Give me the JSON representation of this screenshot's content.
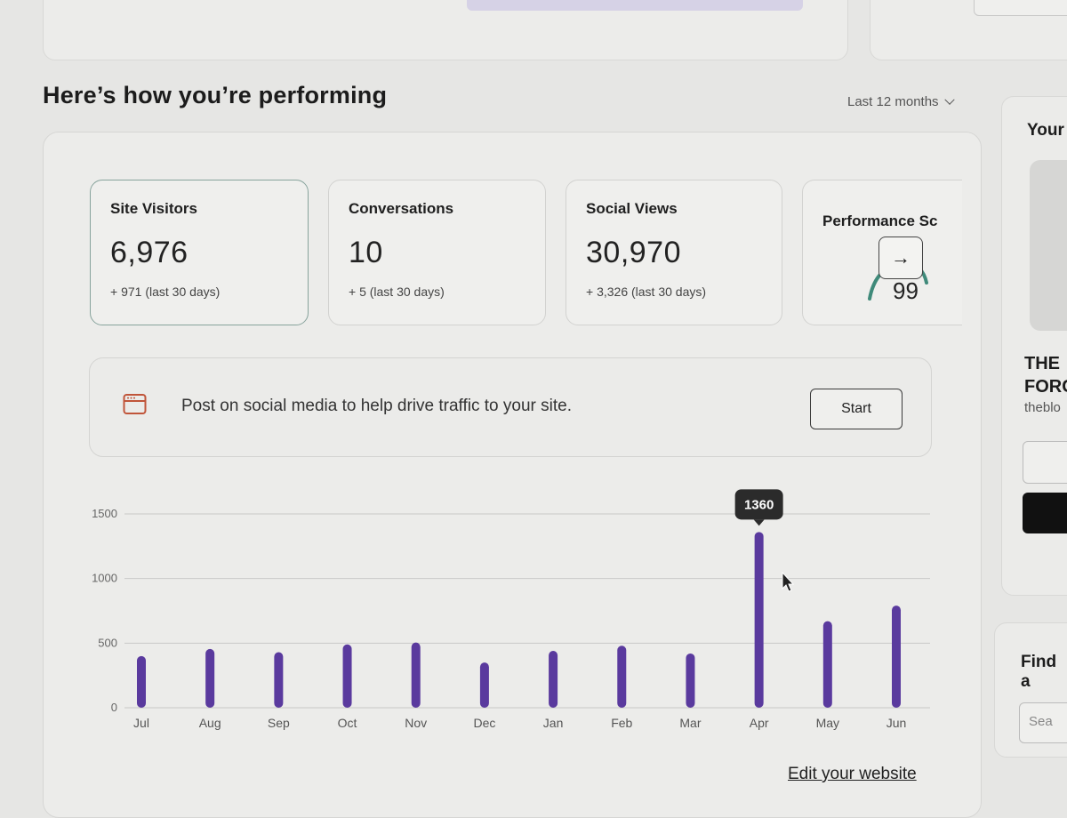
{
  "header": {
    "title": "Here’s how you’re performing",
    "range_label": "Last 12 months"
  },
  "stats": [
    {
      "label": "Site Visitors",
      "value": "6,976",
      "delta": "+ 971 (last 30 days)"
    },
    {
      "label": "Conversations",
      "value": "10",
      "delta": "+ 5 (last 30 days)"
    },
    {
      "label": "Social Views",
      "value": "30,970",
      "delta": "+ 3,326 (last 30 days)"
    },
    {
      "label": "Performance Sc",
      "value": "99"
    }
  ],
  "banner": {
    "text": "Post on social media to help drive traffic to your site.",
    "button": "Start"
  },
  "footer": {
    "edit_link": "Edit your website"
  },
  "right_panel": {
    "title": "Your",
    "heading_line1": "THE",
    "heading_line2": "FORC",
    "subtitle": "theblo",
    "find_heading": "Find a",
    "search_placeholder": "Sea"
  },
  "colors": {
    "bar": "#5a3a9e",
    "tooltip_bg": "#2b2b2b",
    "active_border": "#87a39c",
    "gauge": "#3f8a7a"
  },
  "chart_data": {
    "type": "bar",
    "categories": [
      "Jul",
      "Aug",
      "Sep",
      "Oct",
      "Nov",
      "Dec",
      "Jan",
      "Feb",
      "Mar",
      "Apr",
      "May",
      "Jun"
    ],
    "values": [
      400,
      455,
      430,
      490,
      505,
      350,
      440,
      480,
      420,
      1360,
      670,
      790
    ],
    "ylim": [
      0,
      1500
    ],
    "yticks": [
      0,
      500,
      1000,
      1500
    ],
    "grid": true,
    "tooltip": {
      "category": "Apr",
      "label": "1360"
    }
  }
}
